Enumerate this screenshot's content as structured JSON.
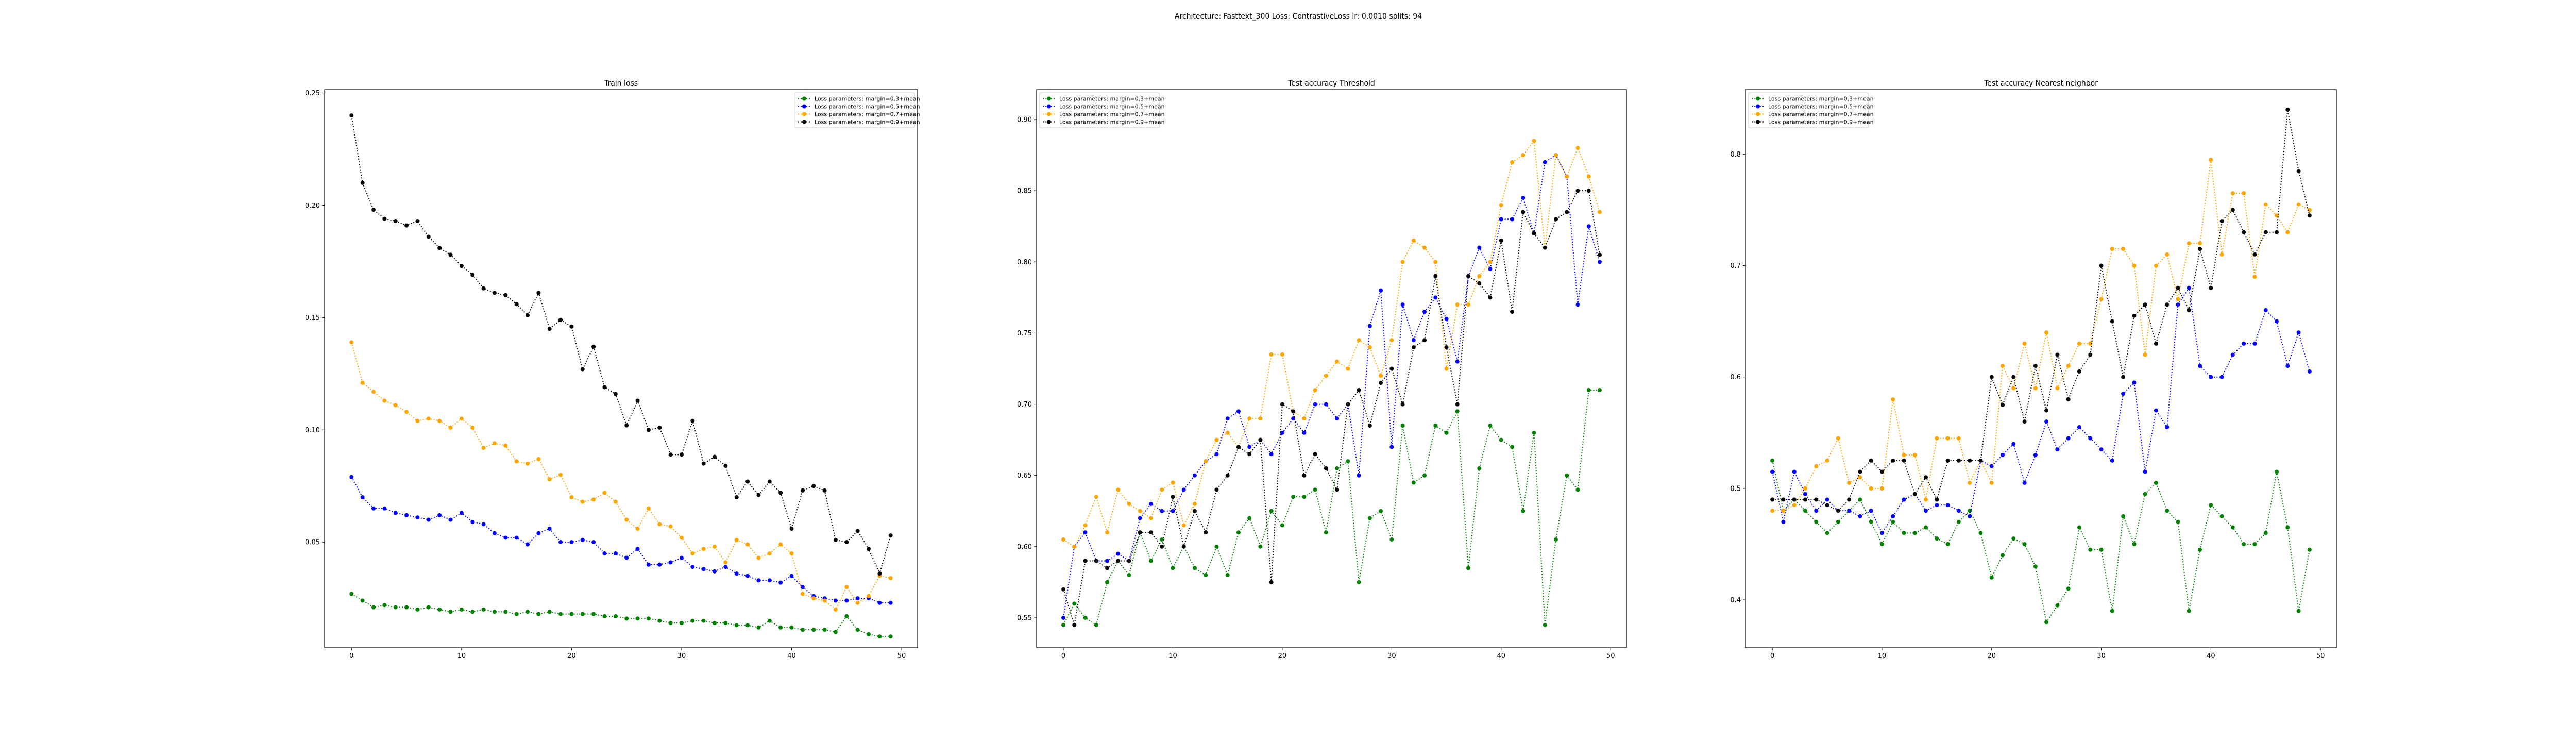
{
  "suptitle": "Architecture: Fasttext_300 Loss: ContrastiveLoss lr: 0.0010 splits: 94",
  "chart_data": [
    {
      "type": "line",
      "title": "Train loss",
      "legend": "upper right",
      "x": [
        0,
        1,
        2,
        3,
        4,
        5,
        6,
        7,
        8,
        9,
        10,
        11,
        12,
        13,
        14,
        15,
        16,
        17,
        18,
        19,
        20,
        21,
        22,
        23,
        24,
        25,
        26,
        27,
        28,
        29,
        30,
        31,
        32,
        33,
        34,
        35,
        36,
        37,
        38,
        39,
        40,
        41,
        42,
        43,
        44,
        45,
        46,
        47,
        48,
        49
      ],
      "xlim": [
        -2.45,
        51.45
      ],
      "xticks": [
        0,
        10,
        20,
        30,
        40,
        50
      ],
      "ylim": [
        0.003,
        0.2515
      ],
      "yticks": [
        {
          "value": 0.05,
          "label": "0.05"
        },
        {
          "value": 0.1,
          "label": "0.10"
        },
        {
          "value": 0.15,
          "label": "0.15"
        },
        {
          "value": 0.2,
          "label": "0.20"
        },
        {
          "value": 0.25,
          "label": "0.25"
        }
      ],
      "series": [
        {
          "name": "Loss parameters: margin=0.3+mean",
          "color": "green",
          "values": [
            0.027,
            0.024,
            0.021,
            0.022,
            0.021,
            0.021,
            0.02,
            0.021,
            0.02,
            0.019,
            0.02,
            0.019,
            0.02,
            0.019,
            0.019,
            0.018,
            0.019,
            0.018,
            0.019,
            0.018,
            0.018,
            0.018,
            0.018,
            0.017,
            0.017,
            0.016,
            0.016,
            0.016,
            0.015,
            0.014,
            0.014,
            0.015,
            0.015,
            0.014,
            0.014,
            0.013,
            0.013,
            0.012,
            0.015,
            0.012,
            0.012,
            0.011,
            0.011,
            0.011,
            0.01,
            0.017,
            0.011,
            0.009,
            0.008,
            0.008
          ]
        },
        {
          "name": "Loss parameters: margin=0.5+mean",
          "color": "blue",
          "values": [
            0.079,
            0.07,
            0.065,
            0.065,
            0.063,
            0.062,
            0.061,
            0.06,
            0.062,
            0.06,
            0.063,
            0.059,
            0.058,
            0.054,
            0.052,
            0.052,
            0.049,
            0.054,
            0.056,
            0.05,
            0.05,
            0.051,
            0.05,
            0.045,
            0.045,
            0.043,
            0.047,
            0.04,
            0.04,
            0.041,
            0.043,
            0.039,
            0.038,
            0.037,
            0.039,
            0.036,
            0.035,
            0.033,
            0.033,
            0.032,
            0.035,
            0.03,
            0.026,
            0.025,
            0.024,
            0.024,
            0.025,
            0.025,
            0.023,
            0.023
          ]
        },
        {
          "name": "Loss parameters: margin=0.7+mean",
          "color": "orange",
          "values": [
            0.139,
            0.121,
            0.117,
            0.113,
            0.111,
            0.108,
            0.104,
            0.105,
            0.104,
            0.101,
            0.105,
            0.101,
            0.092,
            0.094,
            0.093,
            0.086,
            0.085,
            0.087,
            0.078,
            0.08,
            0.07,
            0.068,
            0.069,
            0.072,
            0.068,
            0.06,
            0.056,
            0.065,
            0.058,
            0.057,
            0.052,
            0.045,
            0.047,
            0.048,
            0.041,
            0.051,
            0.049,
            0.043,
            0.045,
            0.049,
            0.045,
            0.027,
            0.025,
            0.024,
            0.02,
            0.03,
            0.023,
            0.026,
            0.035,
            0.034
          ]
        },
        {
          "name": "Loss parameters: margin=0.9+mean",
          "color": "black",
          "values": [
            0.24,
            0.21,
            0.198,
            0.194,
            0.193,
            0.191,
            0.193,
            0.186,
            0.181,
            0.178,
            0.173,
            0.169,
            0.163,
            0.161,
            0.16,
            0.156,
            0.151,
            0.161,
            0.145,
            0.149,
            0.146,
            0.127,
            0.137,
            0.119,
            0.116,
            0.102,
            0.113,
            0.1,
            0.101,
            0.089,
            0.089,
            0.104,
            0.085,
            0.088,
            0.084,
            0.07,
            0.077,
            0.071,
            0.077,
            0.072,
            0.056,
            0.073,
            0.075,
            0.073,
            0.051,
            0.05,
            0.055,
            0.047,
            0.036,
            0.053
          ]
        }
      ]
    },
    {
      "type": "line",
      "title": "Test accuracy Threshold",
      "legend": "upper left",
      "x": [
        0,
        1,
        2,
        3,
        4,
        5,
        6,
        7,
        8,
        9,
        10,
        11,
        12,
        13,
        14,
        15,
        16,
        17,
        18,
        19,
        20,
        21,
        22,
        23,
        24,
        25,
        26,
        27,
        28,
        29,
        30,
        31,
        32,
        33,
        34,
        35,
        36,
        37,
        38,
        39,
        40,
        41,
        42,
        43,
        44,
        45,
        46,
        47,
        48,
        49
      ],
      "xlim": [
        -2.45,
        51.45
      ],
      "xticks": [
        0,
        10,
        20,
        30,
        40,
        50
      ],
      "ylim": [
        0.529,
        0.921
      ],
      "yticks": [
        0.55,
        {
          "value": 0.6,
          "label": "0.60"
        },
        0.65,
        {
          "value": 0.7,
          "label": "0.70"
        },
        0.75,
        {
          "value": 0.8,
          "label": "0.80"
        },
        0.85,
        {
          "value": 0.9,
          "label": "0.90"
        }
      ],
      "series": [
        {
          "name": "Loss parameters: margin=0.3+mean",
          "color": "green",
          "values": [
            0.545,
            0.56,
            0.55,
            0.545,
            0.575,
            0.59,
            0.58,
            0.61,
            0.59,
            0.605,
            0.585,
            0.6,
            0.585,
            0.58,
            0.6,
            0.58,
            0.61,
            0.62,
            0.6,
            0.625,
            0.615,
            0.635,
            0.635,
            0.64,
            0.61,
            0.655,
            0.66,
            0.575,
            0.62,
            0.625,
            0.605,
            0.685,
            0.645,
            0.65,
            0.685,
            0.68,
            0.695,
            0.585,
            0.655,
            0.685,
            0.675,
            0.67,
            0.625,
            0.68,
            0.545,
            0.605,
            0.65,
            0.64,
            0.71,
            0.71
          ]
        },
        {
          "name": "Loss parameters: margin=0.5+mean",
          "color": "blue",
          "values": [
            0.55,
            0.6,
            0.61,
            0.59,
            0.59,
            0.595,
            0.59,
            0.62,
            0.63,
            0.625,
            0.625,
            0.64,
            0.65,
            0.66,
            0.665,
            0.69,
            0.695,
            0.67,
            0.675,
            0.665,
            0.68,
            0.69,
            0.68,
            0.7,
            0.7,
            0.69,
            0.7,
            0.65,
            0.755,
            0.78,
            0.67,
            0.77,
            0.745,
            0.765,
            0.775,
            0.76,
            0.73,
            0.79,
            0.81,
            0.795,
            0.83,
            0.83,
            0.845,
            0.82,
            0.87,
            0.875,
            0.86,
            0.77,
            0.825,
            0.8
          ]
        },
        {
          "name": "Loss parameters: margin=0.7+mean",
          "color": "orange",
          "values": [
            0.605,
            0.6,
            0.615,
            0.635,
            0.61,
            0.64,
            0.63,
            0.625,
            0.62,
            0.64,
            0.645,
            0.615,
            0.63,
            0.66,
            0.675,
            0.68,
            0.67,
            0.69,
            0.69,
            0.735,
            0.735,
            0.695,
            0.69,
            0.71,
            0.72,
            0.73,
            0.725,
            0.745,
            0.74,
            0.72,
            0.745,
            0.8,
            0.815,
            0.81,
            0.8,
            0.725,
            0.77,
            0.77,
            0.79,
            0.8,
            0.84,
            0.87,
            0.875,
            0.885,
            0.81,
            0.875,
            0.86,
            0.88,
            0.86,
            0.835
          ]
        },
        {
          "name": "Loss parameters: margin=0.9+mean",
          "color": "black",
          "values": [
            0.57,
            0.545,
            0.59,
            0.59,
            0.585,
            0.59,
            0.59,
            0.61,
            0.61,
            0.6,
            0.635,
            0.6,
            0.625,
            0.61,
            0.64,
            0.65,
            0.67,
            0.665,
            0.675,
            0.575,
            0.7,
            0.695,
            0.65,
            0.665,
            0.655,
            0.64,
            0.7,
            0.71,
            0.685,
            0.715,
            0.725,
            0.7,
            0.74,
            0.745,
            0.79,
            0.74,
            0.7,
            0.79,
            0.785,
            0.775,
            0.815,
            0.765,
            0.835,
            0.82,
            0.81,
            0.83,
            0.835,
            0.85,
            0.85,
            0.805
          ]
        }
      ]
    },
    {
      "type": "line",
      "title": "Test accuracy Nearest neighbor",
      "legend": "upper left",
      "x": [
        0,
        1,
        2,
        3,
        4,
        5,
        6,
        7,
        8,
        9,
        10,
        11,
        12,
        13,
        14,
        15,
        16,
        17,
        18,
        19,
        20,
        21,
        22,
        23,
        24,
        25,
        26,
        27,
        28,
        29,
        30,
        31,
        32,
        33,
        34,
        35,
        36,
        37,
        38,
        39,
        40,
        41,
        42,
        43,
        44,
        45,
        46,
        47,
        48,
        49
      ],
      "xlim": [
        -2.45,
        51.45
      ],
      "xticks": [
        0,
        10,
        20,
        30,
        40,
        50
      ],
      "ylim": [
        0.357,
        0.858
      ],
      "yticks": [
        0.4,
        0.5,
        0.6,
        0.7,
        0.8
      ],
      "series": [
        {
          "name": "Loss parameters: margin=0.3+mean",
          "color": "green",
          "values": [
            0.525,
            0.48,
            0.49,
            0.48,
            0.47,
            0.46,
            0.47,
            0.48,
            0.49,
            0.47,
            0.45,
            0.47,
            0.46,
            0.46,
            0.465,
            0.455,
            0.45,
            0.47,
            0.48,
            0.46,
            0.42,
            0.44,
            0.455,
            0.45,
            0.43,
            0.38,
            0.395,
            0.41,
            0.465,
            0.445,
            0.445,
            0.39,
            0.475,
            0.45,
            0.495,
            0.505,
            0.48,
            0.47,
            0.39,
            0.445,
            0.485,
            0.475,
            0.465,
            0.45,
            0.45,
            0.46,
            0.515,
            0.465,
            0.39,
            0.445
          ]
        },
        {
          "name": "Loss parameters: margin=0.5+mean",
          "color": "blue",
          "values": [
            0.515,
            0.47,
            0.515,
            0.495,
            0.48,
            0.49,
            0.48,
            0.48,
            0.475,
            0.48,
            0.46,
            0.475,
            0.49,
            0.495,
            0.48,
            0.485,
            0.485,
            0.48,
            0.475,
            0.525,
            0.52,
            0.53,
            0.54,
            0.505,
            0.53,
            0.56,
            0.535,
            0.545,
            0.555,
            0.545,
            0.535,
            0.525,
            0.585,
            0.595,
            0.515,
            0.57,
            0.555,
            0.665,
            0.68,
            0.61,
            0.6,
            0.6,
            0.62,
            0.63,
            0.63,
            0.66,
            0.65,
            0.61,
            0.64,
            0.605
          ]
        },
        {
          "name": "Loss parameters: margin=0.7+mean",
          "color": "orange",
          "values": [
            0.48,
            0.48,
            0.485,
            0.5,
            0.52,
            0.525,
            0.545,
            0.505,
            0.51,
            0.5,
            0.5,
            0.58,
            0.53,
            0.53,
            0.49,
            0.545,
            0.545,
            0.545,
            0.505,
            0.525,
            0.505,
            0.61,
            0.59,
            0.63,
            0.59,
            0.64,
            0.59,
            0.61,
            0.63,
            0.63,
            0.67,
            0.715,
            0.715,
            0.7,
            0.62,
            0.7,
            0.71,
            0.67,
            0.72,
            0.72,
            0.795,
            0.71,
            0.765,
            0.765,
            0.69,
            0.755,
            0.745,
            0.73,
            0.755,
            0.75
          ]
        },
        {
          "name": "Loss parameters: margin=0.9+mean",
          "color": "black",
          "values": [
            0.49,
            0.49,
            0.49,
            0.49,
            0.49,
            0.485,
            0.48,
            0.49,
            0.515,
            0.525,
            0.515,
            0.525,
            0.525,
            0.495,
            0.51,
            0.49,
            0.525,
            0.525,
            0.525,
            0.525,
            0.6,
            0.575,
            0.6,
            0.56,
            0.61,
            0.57,
            0.62,
            0.58,
            0.605,
            0.62,
            0.7,
            0.65,
            0.6,
            0.655,
            0.665,
            0.63,
            0.665,
            0.68,
            0.66,
            0.715,
            0.68,
            0.74,
            0.75,
            0.73,
            0.71,
            0.73,
            0.73,
            0.84,
            0.785,
            0.745
          ]
        }
      ]
    }
  ]
}
